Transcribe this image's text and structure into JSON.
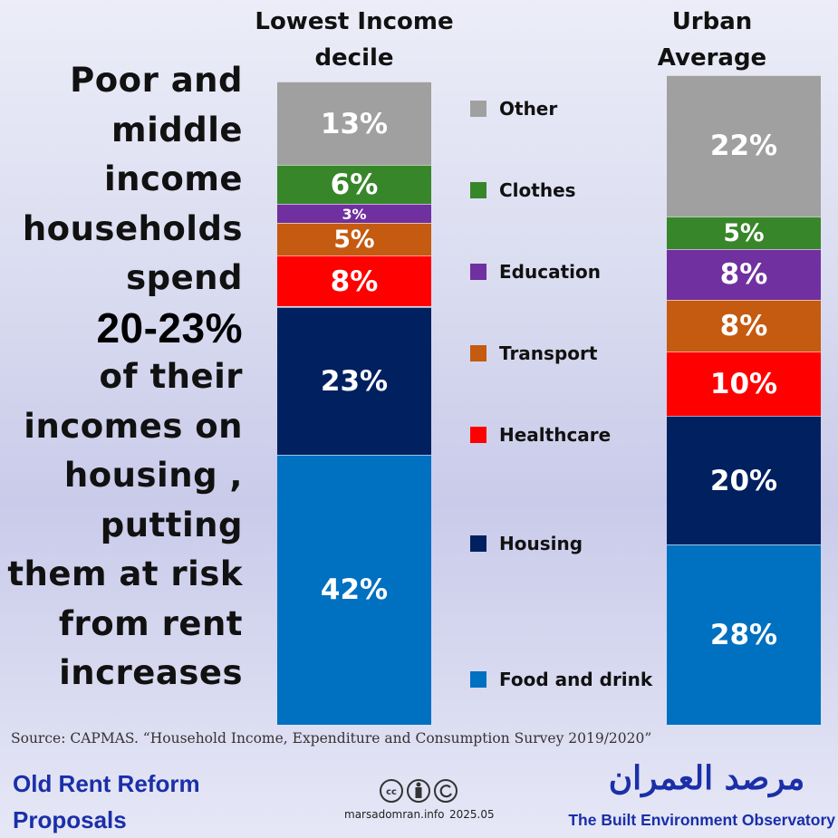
{
  "chart_data": {
    "type": "stacked_bar",
    "categories": [
      "Lowest Income decile",
      "Urban Average"
    ],
    "ylim": [
      0,
      100
    ],
    "series": [
      {
        "name": "Food and drink",
        "color": "#0070c0",
        "values": [
          42,
          28
        ],
        "value_labels": [
          "42%",
          "28%"
        ]
      },
      {
        "name": "Housing",
        "color": "#002060",
        "values": [
          23,
          20
        ],
        "value_labels": [
          "23%",
          "20%"
        ]
      },
      {
        "name": "Healthcare",
        "color": "#ff0000",
        "values": [
          8,
          10
        ],
        "value_labels": [
          "8%",
          "10%"
        ]
      },
      {
        "name": "Transport",
        "color": "#c55a11",
        "values": [
          5,
          8
        ],
        "value_labels": [
          "5%",
          "8%"
        ]
      },
      {
        "name": "Education",
        "color": "#7030a0",
        "values": [
          3,
          8
        ],
        "value_labels": [
          "3%",
          "8%"
        ]
      },
      {
        "name": "Clothes",
        "color": "#38862a",
        "values": [
          6,
          5
        ],
        "value_labels": [
          "6%",
          "5%"
        ]
      },
      {
        "name": "Other",
        "color": "#a0a0a0",
        "values": [
          13,
          22
        ],
        "value_labels": [
          "13%",
          "22%"
        ]
      }
    ],
    "source": "Source: CAPMAS. “Household Income, Expenditure and Consumption Survey 2019/2020”"
  },
  "headline": {
    "lines_before": [
      "Poor and",
      "middle",
      "income",
      "households",
      "spend"
    ],
    "highlight": "20-23%",
    "lines_after": [
      "of their",
      "incomes on",
      "housing ,",
      "putting",
      "them at risk",
      "from rent",
      "increases"
    ]
  },
  "footer": {
    "series_title": "Old Rent Reform Proposals",
    "site": "marsadomran.info",
    "date": "2025.05",
    "org_arabic": "مرصد العمران",
    "org_english": "The Built Environment Observatory"
  }
}
